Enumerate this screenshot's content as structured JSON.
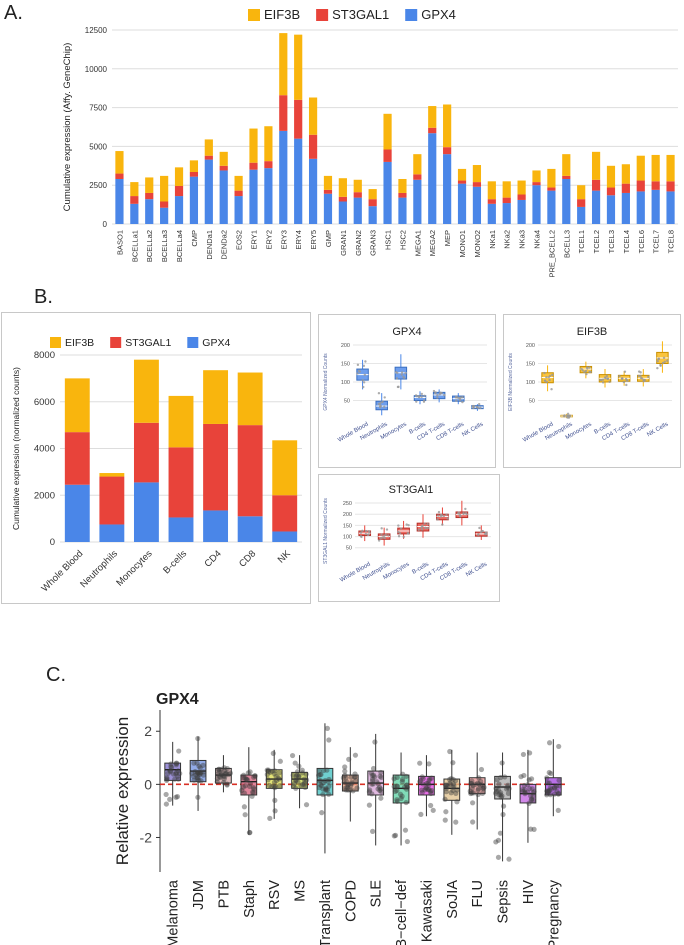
{
  "panels": {
    "a": "A.",
    "b": "B.",
    "c": "C."
  },
  "colors": {
    "eif3b": "#F9B50D",
    "st3gal1": "#E8433A",
    "gpx4": "#4A86E8"
  },
  "chart_data": [
    {
      "id": "A",
      "type": "bar",
      "stacked": true,
      "ylabel": "Cumulative expression (Affy. GeneChip)",
      "ylim": [
        0,
        12500
      ],
      "yticks": [
        0,
        2500,
        5000,
        7500,
        10000,
        12500
      ],
      "legend": "top",
      "categories": [
        "BASO1",
        "BCELLa1",
        "BCELLa2",
        "BCELLa3",
        "BCELLa4",
        "CMP",
        "DENDa1",
        "DENDa2",
        "EOS2",
        "ERY1",
        "ERY2",
        "ERY3",
        "ERY4",
        "ERY5",
        "GMP",
        "GRAN1",
        "GRAN2",
        "GRAN3",
        "HSC1",
        "HSC2",
        "MEGA1",
        "MEGA2",
        "MEP",
        "MONO1",
        "MONO2",
        "NKa1",
        "NKa2",
        "NKa3",
        "NKa4",
        "PRE_BCELL2",
        "BCELL3",
        "TCEL1",
        "TCEL2",
        "TCEL3",
        "TCEL4",
        "TCEL6",
        "TCEL7",
        "TCEL8"
      ],
      "series": [
        {
          "name": "GPX4",
          "values": [
            2900,
            1300,
            1600,
            1050,
            1800,
            3050,
            4150,
            3450,
            1800,
            3500,
            3600,
            6000,
            5500,
            4200,
            1950,
            1450,
            1700,
            1150,
            4000,
            1700,
            2850,
            5850,
            4500,
            2600,
            2400,
            1300,
            1350,
            1550,
            2500,
            2150,
            2900,
            1100,
            2150,
            1850,
            2000,
            2100,
            2200,
            2100
          ]
        },
        {
          "name": "ST3GAL1",
          "values": [
            350,
            500,
            400,
            400,
            650,
            300,
            250,
            300,
            350,
            450,
            450,
            2300,
            2500,
            1550,
            250,
            300,
            350,
            450,
            800,
            300,
            350,
            350,
            450,
            200,
            300,
            300,
            350,
            350,
            200,
            200,
            200,
            500,
            700,
            500,
            600,
            700,
            550,
            650
          ]
        },
        {
          "name": "EIF3B",
          "values": [
            1450,
            900,
            1000,
            1650,
            1200,
            750,
            1050,
            900,
            950,
            2200,
            2250,
            4000,
            4200,
            2400,
            900,
            1200,
            800,
            650,
            2300,
            900,
            1300,
            1400,
            2750,
            750,
            1100,
            1150,
            1050,
            900,
            750,
            1200,
            1400,
            900,
            1800,
            1400,
            1250,
            1600,
            1700,
            1700
          ]
        }
      ]
    },
    {
      "id": "B1",
      "type": "bar",
      "stacked": true,
      "ylabel": "Cumulative expression (normalized counts)",
      "ylim": [
        0,
        8000
      ],
      "yticks": [
        0,
        2000,
        4000,
        6000,
        8000
      ],
      "legend": "top",
      "categories": [
        "Whole Blood",
        "Neutrophils",
        "Monocytes",
        "B-cells",
        "CD4",
        "CD8",
        "NK"
      ],
      "series": [
        {
          "name": "GPX4",
          "values": [
            2450,
            750,
            2550,
            1050,
            1350,
            1100,
            450
          ]
        },
        {
          "name": "ST3GAL1",
          "values": [
            2250,
            2050,
            2550,
            3000,
            3700,
            3900,
            1550
          ]
        },
        {
          "name": "EIF3B",
          "values": [
            2300,
            150,
            2700,
            2200,
            2300,
            2250,
            2350
          ]
        }
      ]
    },
    {
      "id": "B2",
      "type": "box",
      "title": "GPX4",
      "ylabel": "GPX4 Normalized Counts",
      "ylim": [
        0,
        200
      ],
      "yticks": [
        50,
        100,
        150,
        200
      ],
      "color": "#4A86E8",
      "categories": [
        "Whole Blood",
        "Neutrophils",
        "Monocytes",
        "B-cells",
        "CD4 T-cells",
        "CD8 T-cells",
        "NK Cells"
      ],
      "box": [
        [
          105,
          120,
          135
        ],
        [
          25,
          35,
          48
        ],
        [
          108,
          125,
          140
        ],
        [
          50,
          58,
          63
        ],
        [
          55,
          65,
          72
        ],
        [
          48,
          55,
          62
        ],
        [
          28,
          32,
          36
        ]
      ],
      "whisker": [
        [
          80,
          160
        ],
        [
          10,
          70
        ],
        [
          80,
          175
        ],
        [
          40,
          75
        ],
        [
          45,
          80
        ],
        [
          40,
          70
        ],
        [
          22,
          40
        ]
      ]
    },
    {
      "id": "B3",
      "type": "box",
      "title": "EIF3B",
      "ylabel": "EIF3B Normalized Counts",
      "ylim": [
        0,
        200
      ],
      "yticks": [
        50,
        100,
        150,
        200
      ],
      "color": "#F9B50D",
      "categories": [
        "Whole Blood",
        "Neutrophils",
        "Monocytes",
        "B-cells",
        "CD4 T-cells",
        "CD8 T-cells",
        "NK Cells"
      ],
      "box": [
        [
          98,
          112,
          125
        ],
        [
          6,
          8,
          10
        ],
        [
          125,
          135,
          142
        ],
        [
          100,
          110,
          120
        ],
        [
          102,
          110,
          118
        ],
        [
          102,
          110,
          118
        ],
        [
          150,
          165,
          180
        ]
      ],
      "whisker": [
        [
          75,
          145
        ],
        [
          3,
          14
        ],
        [
          110,
          155
        ],
        [
          85,
          135
        ],
        [
          90,
          130
        ],
        [
          88,
          135
        ],
        [
          125,
          210
        ]
      ]
    },
    {
      "id": "B4",
      "type": "box",
      "title": "ST3GAl1",
      "ylabel": "ST3GAL1 Normalized Counts",
      "ylim": [
        0,
        250
      ],
      "yticks": [
        50,
        100,
        150,
        200,
        250
      ],
      "color": "#E8433A",
      "categories": [
        "Whole Blood",
        "Neutrophils",
        "Monocytes",
        "B-cells",
        "CD4 T-cells",
        "CD8 T-cells",
        "NK Cells"
      ],
      "box": [
        [
          105,
          115,
          125
        ],
        [
          88,
          100,
          112
        ],
        [
          112,
          125,
          138
        ],
        [
          125,
          145,
          160
        ],
        [
          175,
          190,
          200
        ],
        [
          185,
          198,
          210
        ],
        [
          102,
          112,
          120
        ]
      ],
      "whisker": [
        [
          80,
          150
        ],
        [
          60,
          140
        ],
        [
          90,
          170
        ],
        [
          95,
          200
        ],
        [
          150,
          230
        ],
        [
          150,
          260
        ],
        [
          85,
          150
        ]
      ]
    },
    {
      "id": "C",
      "type": "box",
      "title": "GPX4",
      "ylabel": "Relative expression",
      "ylim": [
        -3.3,
        2.8
      ],
      "yticks": [
        -2,
        0,
        2
      ],
      "reference_line": 0,
      "categories": [
        "Melanoma",
        "JDM",
        "PTB",
        "Staph",
        "RSV",
        "MS",
        "Liver−Transplant",
        "COPD",
        "SLE",
        "B−cell−def",
        "Kawasaki",
        "SoJIA",
        "FLU",
        "Sepsis",
        "HIV",
        "Pregnancy"
      ],
      "colors": [
        "#7B6CC9",
        "#6E8FE0",
        "#D4A5A5",
        "#D65C7A",
        "#D9D94A",
        "#C8D44A",
        "#3FC0C0",
        "#E6A080",
        "#D4A0D4",
        "#55D0A0",
        "#E040E0",
        "#E0C08A",
        "#E89090",
        "#A8A8A8",
        "#C060E0",
        "#A040E0"
      ],
      "box": [
        [
          0.15,
          0.55,
          0.8
        ],
        [
          0.1,
          0.5,
          0.9
        ],
        [
          0.05,
          0.35,
          0.6
        ],
        [
          -0.4,
          0.1,
          0.35
        ],
        [
          -0.15,
          0.2,
          0.55
        ],
        [
          -0.15,
          0.2,
          0.45
        ],
        [
          -0.4,
          0.15,
          0.6
        ],
        [
          -0.25,
          0.05,
          0.35
        ],
        [
          -0.4,
          0.05,
          0.5
        ],
        [
          -0.7,
          -0.15,
          0.35
        ],
        [
          -0.4,
          0.0,
          0.3
        ],
        [
          -0.6,
          -0.15,
          0.2
        ],
        [
          -0.35,
          0.0,
          0.25
        ],
        [
          -0.55,
          -0.1,
          0.3
        ],
        [
          -0.7,
          -0.35,
          0.0
        ],
        [
          -0.4,
          0.0,
          0.25
        ]
      ],
      "whisker": [
        [
          -0.8,
          1.6
        ],
        [
          -1.0,
          1.8
        ],
        [
          -0.3,
          1.1
        ],
        [
          -1.9,
          1.4
        ],
        [
          -1.3,
          1.3
        ],
        [
          -0.9,
          1.1
        ],
        [
          -2.6,
          2.3
        ],
        [
          -1.4,
          1.4
        ],
        [
          -2.3,
          1.9
        ],
        [
          -2.3,
          1.2
        ],
        [
          -1.2,
          1.1
        ],
        [
          -1.9,
          1.3
        ],
        [
          -1.7,
          1.2
        ],
        [
          -2.9,
          1.2
        ],
        [
          -2.2,
          1.3
        ],
        [
          -1.2,
          1.7
        ]
      ]
    }
  ]
}
